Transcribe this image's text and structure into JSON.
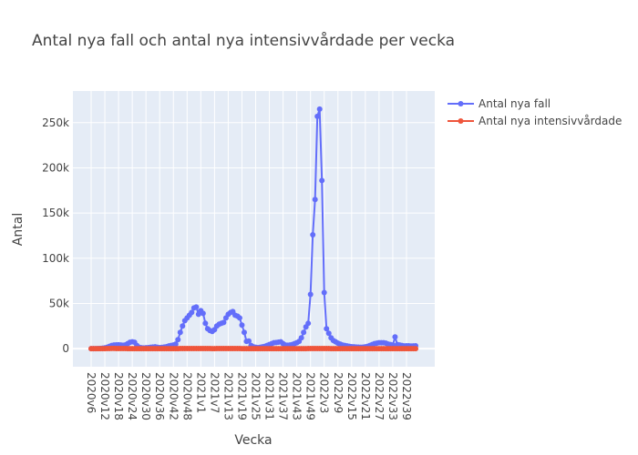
{
  "chart_data": {
    "type": "line",
    "title": "Antal nya fall och antal nya intensivvårdade per vecka",
    "xlabel": "Vecka",
    "ylabel": "Antal",
    "ylim": [
      -20000,
      285000
    ],
    "yticks": [
      0,
      50000,
      100000,
      150000,
      200000,
      250000
    ],
    "ytick_labels": [
      "0",
      "50k",
      "100k",
      "150k",
      "200k",
      "250k"
    ],
    "x_tick_labels": [
      "2020v6",
      "2020v12",
      "2020v18",
      "2020v24",
      "2020v30",
      "2020v36",
      "2020v42",
      "2020v48",
      "2021v1",
      "2021v7",
      "2021v13",
      "2021v19",
      "2021v25",
      "2021v31",
      "2021v37",
      "2021v43",
      "2021v49",
      "2022v3",
      "2022v9",
      "2022v15",
      "2022v21",
      "2022v27",
      "2022v33",
      "2022v39"
    ],
    "x": [
      "2020v6",
      "2020v7",
      "2020v8",
      "2020v9",
      "2020v10",
      "2020v11",
      "2020v12",
      "2020v13",
      "2020v14",
      "2020v15",
      "2020v16",
      "2020v17",
      "2020v18",
      "2020v19",
      "2020v20",
      "2020v21",
      "2020v22",
      "2020v23",
      "2020v24",
      "2020v25",
      "2020v26",
      "2020v27",
      "2020v28",
      "2020v29",
      "2020v30",
      "2020v31",
      "2020v32",
      "2020v33",
      "2020v34",
      "2020v35",
      "2020v36",
      "2020v37",
      "2020v38",
      "2020v39",
      "2020v40",
      "2020v41",
      "2020v42",
      "2020v43",
      "2020v44",
      "2020v45",
      "2020v46",
      "2020v47",
      "2020v48",
      "2020v49",
      "2020v50",
      "2020v51",
      "2020v52",
      "2020v53",
      "2021v1",
      "2021v2",
      "2021v3",
      "2021v4",
      "2021v5",
      "2021v6",
      "2021v7",
      "2021v8",
      "2021v9",
      "2021v10",
      "2021v11",
      "2021v12",
      "2021v13",
      "2021v14",
      "2021v15",
      "2021v16",
      "2021v17",
      "2021v18",
      "2021v19",
      "2021v20",
      "2021v21",
      "2021v22",
      "2021v23",
      "2021v24",
      "2021v25",
      "2021v26",
      "2021v27",
      "2021v28",
      "2021v29",
      "2021v30",
      "2021v31",
      "2021v32",
      "2021v33",
      "2021v34",
      "2021v35",
      "2021v36",
      "2021v37",
      "2021v38",
      "2021v39",
      "2021v40",
      "2021v41",
      "2021v42",
      "2021v43",
      "2021v44",
      "2021v45",
      "2021v46",
      "2021v47",
      "2021v48",
      "2021v49",
      "2021v50",
      "2021v51",
      "2021v52",
      "2022v1",
      "2022v2",
      "2022v3",
      "2022v4",
      "2022v5",
      "2022v6",
      "2022v7",
      "2022v8",
      "2022v9",
      "2022v10",
      "2022v11",
      "2022v12",
      "2022v13",
      "2022v14",
      "2022v15",
      "2022v16",
      "2022v17",
      "2022v18",
      "2022v19",
      "2022v20",
      "2022v21",
      "2022v22",
      "2022v23",
      "2022v24",
      "2022v25",
      "2022v26",
      "2022v27",
      "2022v28",
      "2022v29",
      "2022v30",
      "2022v31",
      "2022v32",
      "2022v33",
      "2022v34",
      "2022v35",
      "2022v36",
      "2022v37",
      "2022v38",
      "2022v39",
      "2022v40",
      "2022v41",
      "2022v42",
      "2022v43"
    ],
    "series": [
      {
        "name": "Antal nya fall",
        "color": "#636efa",
        "values": [
          0,
          0,
          0,
          100,
          300,
          500,
          900,
          1500,
          2500,
          3500,
          4000,
          4200,
          4300,
          4000,
          3800,
          4200,
          5500,
          7000,
          7500,
          7000,
          3500,
          1500,
          1000,
          800,
          1000,
          1200,
          1500,
          1800,
          2000,
          1500,
          1200,
          1400,
          1800,
          2200,
          3000,
          3500,
          4000,
          5000,
          10000,
          18000,
          25000,
          31000,
          34000,
          37000,
          40000,
          45000,
          46000,
          38000,
          42000,
          39000,
          28000,
          22000,
          20000,
          19000,
          21000,
          25000,
          27000,
          28000,
          29000,
          34000,
          38000,
          40000,
          41000,
          37000,
          36000,
          34000,
          26000,
          18000,
          8000,
          8500,
          3500,
          2000,
          1500,
          1200,
          1500,
          2000,
          2500,
          3500,
          4500,
          5500,
          6500,
          6800,
          7200,
          7500,
          5500,
          4000,
          3800,
          4000,
          4500,
          5500,
          6500,
          8000,
          12000,
          18000,
          24000,
          28000,
          60000,
          126000,
          165000,
          257000,
          265000,
          186000,
          62000,
          22000,
          17000,
          12000,
          9000,
          7500,
          6000,
          5000,
          4000,
          3500,
          3000,
          2500,
          2200,
          2000,
          1800,
          1600,
          1500,
          1600,
          2000,
          2500,
          3500,
          4500,
          5500,
          6000,
          6500,
          6500,
          6500,
          6000,
          5000,
          4500,
          4000,
          13000,
          4500,
          4000,
          3500,
          3000,
          3200,
          3100,
          2900,
          3000,
          3200
        ]
      },
      {
        "name": "Antal nya intensivvårdade",
        "color": "#ef553b",
        "values": [
          0,
          0,
          0,
          0,
          0,
          0,
          20,
          80,
          150,
          200,
          200,
          180,
          150,
          120,
          100,
          80,
          60,
          50,
          40,
          30,
          20,
          15,
          10,
          8,
          6,
          5,
          5,
          5,
          5,
          5,
          6,
          8,
          10,
          15,
          20,
          25,
          30,
          40,
          60,
          80,
          100,
          120,
          130,
          140,
          150,
          160,
          150,
          140,
          130,
          120,
          100,
          80,
          70,
          60,
          60,
          70,
          80,
          90,
          100,
          110,
          120,
          130,
          130,
          120,
          100,
          80,
          60,
          40,
          20,
          10,
          8,
          6,
          5,
          5,
          5,
          5,
          6,
          8,
          10,
          15,
          20,
          25,
          30,
          30,
          28,
          25,
          22,
          20,
          20,
          22,
          25,
          30,
          40,
          50,
          60,
          70,
          80,
          100,
          120,
          140,
          150,
          140,
          120,
          100,
          80,
          60,
          50,
          40,
          30,
          25,
          20,
          18,
          15,
          12,
          10,
          8,
          8,
          8,
          8,
          8,
          10,
          12,
          15,
          18,
          20,
          22,
          25,
          25,
          25,
          22,
          20,
          18,
          16,
          15,
          14,
          13,
          12,
          12,
          12,
          12,
          12,
          12,
          12
        ]
      }
    ],
    "legend_position": "top-right",
    "grid": true
  }
}
